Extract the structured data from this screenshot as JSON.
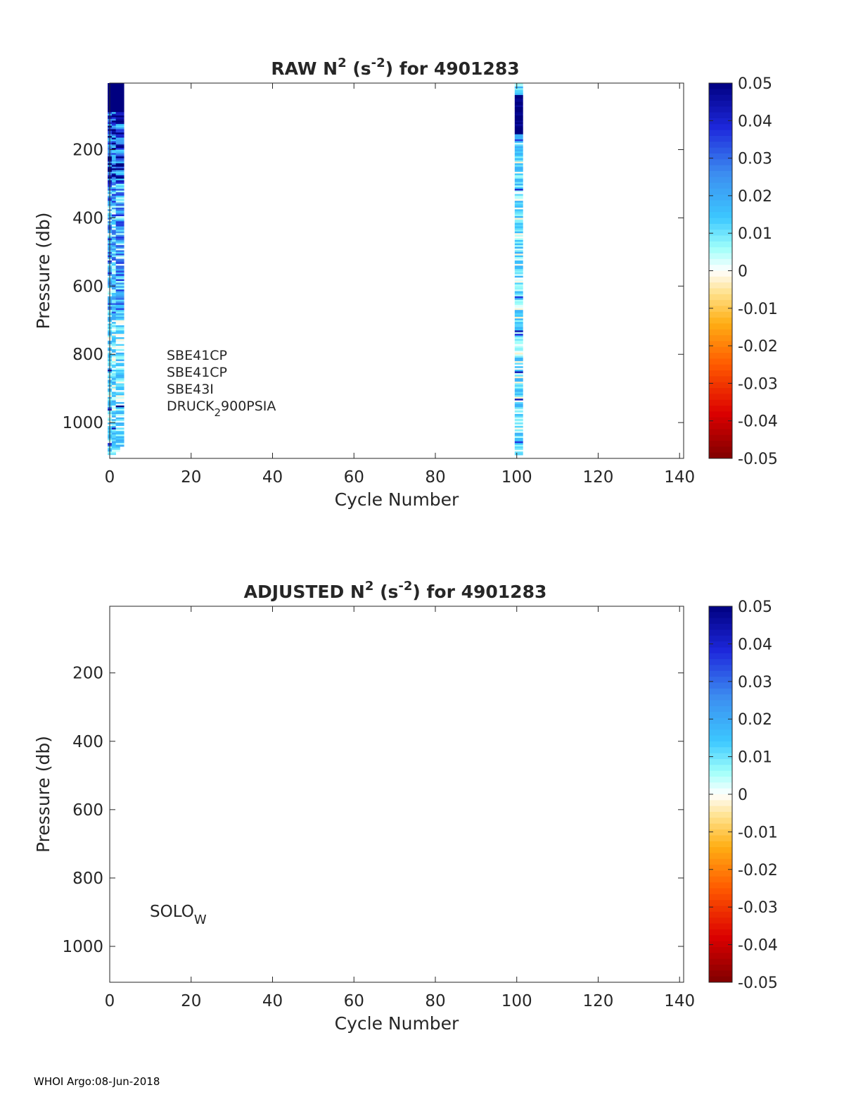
{
  "footer": "WHOI Argo:08-Jun-2018",
  "chart_data": [
    {
      "type": "heatmap",
      "title": {
        "prefix": "RAW N",
        "sup1": "2",
        "mid": " (s",
        "sup2": "-2",
        "suffix": ") for 4901283"
      },
      "xlabel": "Cycle Number",
      "ylabel": "Pressure (db)",
      "xlim": [
        0,
        141
      ],
      "ylim": [
        5,
        1105
      ],
      "y_reversed": true,
      "xticks": [
        "0",
        "20",
        "40",
        "60",
        "80",
        "100",
        "120",
        "140"
      ],
      "yticks": [
        "200",
        "400",
        "600",
        "800",
        "1000"
      ],
      "colorbar": {
        "limits": [
          -0.05,
          0.05
        ],
        "colormap": "jet-like with white near 0",
        "ticks": [
          "0.05",
          "0.04",
          "0.03",
          "0.02",
          "0.01",
          "0",
          "-0.01",
          "-0.02",
          "-0.03",
          "-0.04",
          "-0.05"
        ]
      },
      "annotations": [
        {
          "text": "SBE41CP"
        },
        {
          "text": "SBE41CP"
        },
        {
          "text": "SBE43I"
        },
        {
          "text": "DRUCK",
          "sub": "2",
          "after": "900PSIA"
        }
      ],
      "populated_cycles": [
        1,
        2,
        3,
        101
      ],
      "cycle_max_pressure": {
        "1": 1100,
        "2": 1085,
        "3": 1070,
        "101": 1095
      },
      "value_summary": "cycles 1-3: mostly 0.01 to 0.05 (dark blue 0-300 db, light blue/cyan below); cycle 101: near 0.05 at 40-150 db, near 0 to 0.02 elsewhere"
    },
    {
      "type": "heatmap",
      "title": {
        "prefix": "ADJUSTED N",
        "sup1": "2",
        "mid": " (s",
        "sup2": "-2",
        "suffix": ") for 4901283"
      },
      "xlabel": "Cycle Number",
      "ylabel": "Pressure (db)",
      "xlim": [
        0,
        141
      ],
      "ylim": [
        5,
        1105
      ],
      "y_reversed": true,
      "xticks": [
        "0",
        "20",
        "40",
        "60",
        "80",
        "100",
        "120",
        "140"
      ],
      "yticks": [
        "200",
        "400",
        "600",
        "800",
        "1000"
      ],
      "colorbar": {
        "limits": [
          -0.05,
          0.05
        ],
        "colormap": "jet-like with white near 0",
        "ticks": [
          "0.05",
          "0.04",
          "0.03",
          "0.02",
          "0.01",
          "0",
          "-0.01",
          "-0.02",
          "-0.03",
          "-0.04",
          "-0.05"
        ]
      },
      "annotations": [
        {
          "text": "SOLO",
          "sub": "W",
          "after": ""
        }
      ],
      "populated_cycles": [],
      "value_summary": ""
    }
  ]
}
